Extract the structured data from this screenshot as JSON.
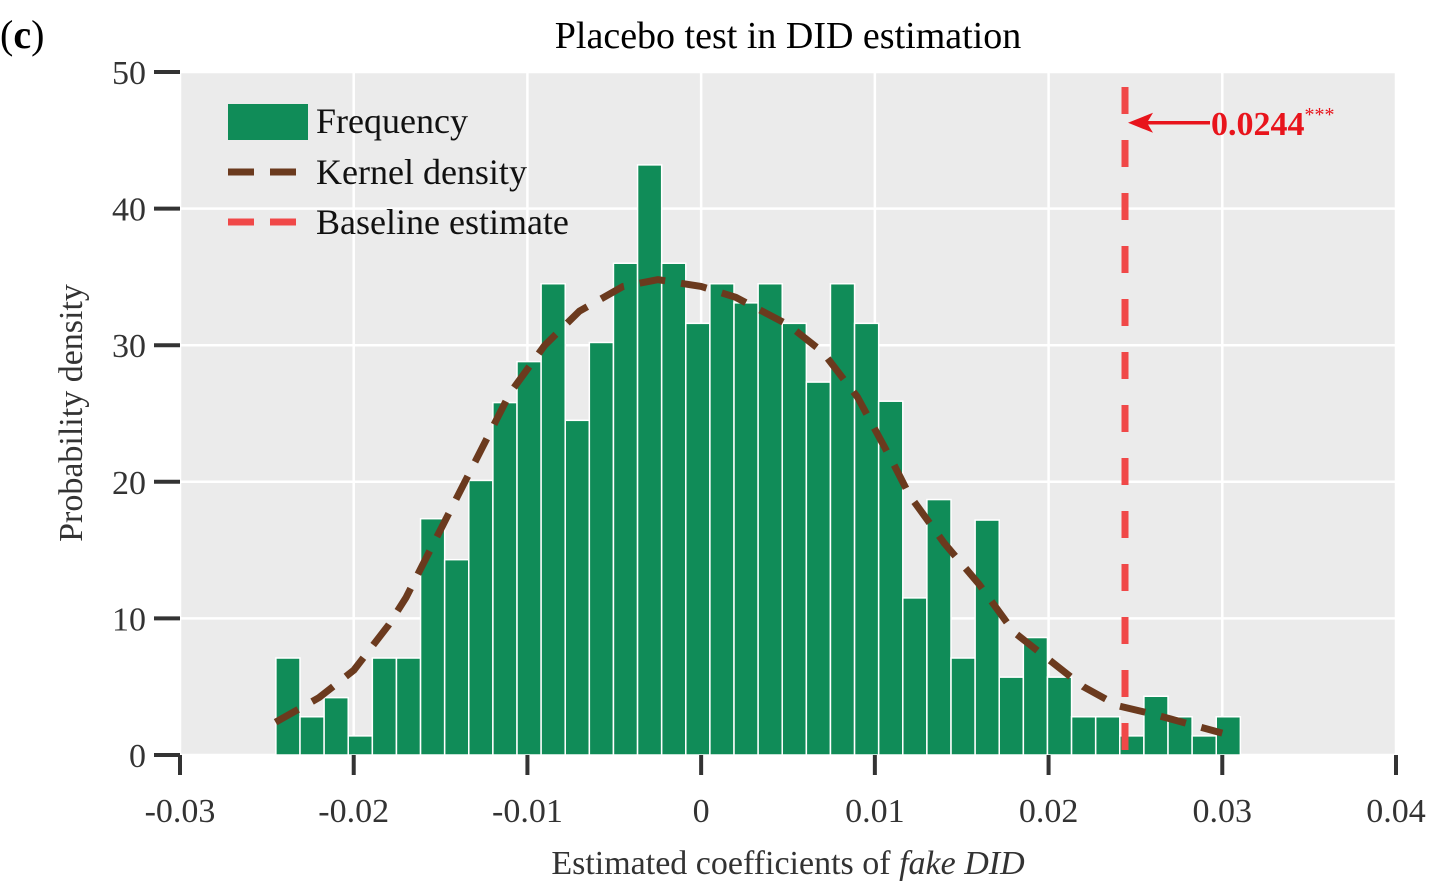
{
  "chart_data": {
    "type": "bar",
    "panel_label_open": "(",
    "panel_label_letter": "c",
    "panel_label_close": ")",
    "title": "Placebo test in DID estimation",
    "xlabel_prefix": "Estimated coefficients of ",
    "xlabel_italic": "fake DID",
    "ylabel": "Probability density",
    "xlim": [
      -0.03,
      0.04
    ],
    "ylim": [
      0,
      50
    ],
    "grid": true,
    "x_ticks": [
      -0.03,
      -0.02,
      -0.01,
      0,
      0.01,
      0.02,
      0.03,
      0.04
    ],
    "x_tick_labels": [
      "-0.03",
      "-0.02",
      "-0.01",
      "0",
      "0.01",
      "0.02",
      "0.03",
      "0.04"
    ],
    "y_ticks": [
      0,
      10,
      20,
      30,
      40,
      50
    ],
    "y_tick_labels": [
      "0",
      "10",
      "20",
      "30",
      "40",
      "50"
    ],
    "legend_position": "top-left",
    "legend": [
      {
        "label": "Frequency",
        "kind": "patch",
        "color": "#108c58"
      },
      {
        "label": "Kernel density",
        "kind": "dashed-line",
        "color": "#6b3a1e"
      },
      {
        "label": "Baseline estimate",
        "kind": "dashed-line",
        "color": "#f04848"
      }
    ],
    "histogram": {
      "name": "Frequency",
      "color": "#108c58",
      "bin_start": -0.02448,
      "bin_width": 0.001388,
      "densities": [
        7.1,
        2.8,
        4.2,
        1.4,
        7.1,
        7.1,
        17.3,
        14.3,
        20.1,
        25.8,
        28.8,
        34.5,
        24.5,
        30.2,
        36.0,
        43.2,
        36.0,
        31.6,
        34.5,
        33.1,
        34.5,
        31.6,
        27.3,
        34.5,
        31.6,
        25.9,
        11.5,
        18.7,
        7.1,
        17.2,
        5.7,
        8.6,
        5.7,
        2.8,
        2.8,
        1.4,
        4.3,
        2.8,
        1.4,
        2.8
      ]
    },
    "kde": {
      "name": "Kernel density",
      "color": "#6b3a1e",
      "x": [
        -0.0245,
        -0.022,
        -0.02,
        -0.018,
        -0.017,
        -0.015,
        -0.013,
        -0.011,
        -0.009,
        -0.007,
        -0.0045,
        -0.0025,
        0,
        0.002,
        0.005,
        0.007,
        0.009,
        0.011,
        0.012,
        0.014,
        0.016,
        0.018,
        0.02,
        0.022,
        0.024,
        0.026,
        0.028,
        0.03
      ],
      "y": [
        2.4,
        4.2,
        6.2,
        9.5,
        11.5,
        16.5,
        21.5,
        26.5,
        30.0,
        32.5,
        34.3,
        34.8,
        34.3,
        33.5,
        31.5,
        29.5,
        26.2,
        21.5,
        19.0,
        15.5,
        12.5,
        9.0,
        7.0,
        5.0,
        3.6,
        3.0,
        2.3,
        1.6
      ]
    },
    "baseline": {
      "name": "Baseline estimate",
      "x": 0.0244,
      "color": "#f04848",
      "annotation_value": "0.0244",
      "annotation_stars": "***",
      "annotation_color": "#e8141c",
      "annotation_y": 46.5
    },
    "colors": {
      "panel_bg": "#ebebeb",
      "grid": "#ffffff",
      "axis": "#333333"
    }
  }
}
